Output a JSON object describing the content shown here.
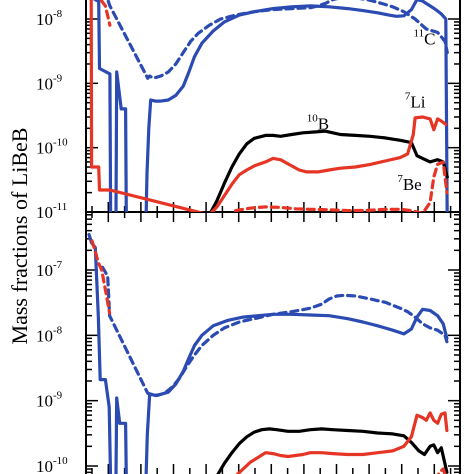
{
  "chart_data": [
    {
      "type": "line",
      "panel": "top",
      "ylabel": "Mass fractions of LiBeB",
      "yscale": "log",
      "ylim": [
        1e-11,
        4e-08
      ],
      "xlim": [
        0,
        100
      ],
      "ytick_labels": [
        {
          "base": "10",
          "exp": "-8",
          "value": 1e-08
        },
        {
          "base": "10",
          "exp": "-9",
          "value": 1e-09
        },
        {
          "base": "10",
          "exp": "-10",
          "value": 1e-10
        },
        {
          "base": "10",
          "exp": "-11",
          "value": 1e-11
        }
      ],
      "annotations": [
        {
          "sup": "11",
          "text": "C",
          "x": 90.5,
          "y": 4e-09
        },
        {
          "sup": "10",
          "text": "B",
          "x": 62,
          "y": 1.9e-10
        },
        {
          "sup": "7",
          "text": "Li",
          "x": 88,
          "y": 4.2e-10
        },
        {
          "sup": "7",
          "text": "Be",
          "x": 86.5,
          "y": 2.2e-11
        }
      ],
      "series": [
        {
          "key": "C11",
          "color": "#2b4bb3",
          "dash": "solid",
          "x": [
            0,
            0.8,
            1.4,
            2.4,
            3.4,
            3.6,
            6.4,
            6.6,
            8,
            8.2,
            9.4,
            10.6,
            10.8,
            16,
            16.3,
            16.8,
            17.3,
            18.5,
            20,
            22,
            24,
            26,
            27.5,
            29,
            31,
            34,
            37,
            41,
            45,
            50,
            55,
            60,
            65,
            70,
            74,
            78,
            81,
            83,
            85,
            87,
            88.5,
            90,
            92,
            93.5,
            95,
            96.2,
            96.6
          ],
          "y": [
            3.5e-08,
            3.8e-08,
            2.4e-08,
            2e-08,
            1.9e-08,
            1.7e-09,
            1.4e-09,
            5e-12,
            5e-12,
            1.5e-09,
            4e-10,
            4e-10,
            5e-12,
            5e-12,
            4e-11,
            2e-10,
            5.5e-10,
            5.3e-10,
            5.3e-10,
            5.5e-10,
            6.5e-10,
            9e-10,
            1.5e-09,
            2.6e-09,
            4.2e-09,
            6.5e-09,
            9e-09,
            1.15e-08,
            1.3e-08,
            1.45e-08,
            1.55e-08,
            1.6e-08,
            1.55e-08,
            1.45e-08,
            1.35e-08,
            1.25e-08,
            1.15e-08,
            1.1e-08,
            1.12e-08,
            1.4e-08,
            2e-08,
            1.9e-08,
            1.6e-08,
            1.4e-08,
            1.2e-08,
            1e-08,
            5e-12
          ]
        },
        {
          "key": "C11-dashed",
          "color": "#2b4bb3",
          "dash": "dashed",
          "x": [
            3.3,
            5.8,
            6.4,
            16.5,
            17,
            18,
            20,
            22,
            24,
            26,
            28,
            30,
            33,
            36,
            40,
            45,
            50,
            55,
            60,
            62,
            64,
            66,
            67.5,
            70,
            73,
            76,
            79,
            82,
            85,
            88,
            91,
            94,
            96,
            96.6
          ],
          "y": [
            2.3e-08,
            2e-08,
            1.6e-08,
            1.2e-09,
            1.3e-09,
            1.2e-09,
            1.3e-09,
            1.5e-09,
            2e-09,
            3e-09,
            4.5e-09,
            6e-09,
            8e-09,
            1e-08,
            1.15e-08,
            1.3e-08,
            1.4e-08,
            1.45e-08,
            1.5e-08,
            1.6e-08,
            1.75e-08,
            2e-08,
            2.1e-08,
            2.15e-08,
            2.1e-08,
            1.95e-08,
            1.75e-08,
            1.55e-08,
            1.3e-08,
            1e-08,
            7e-09,
            6.2e-09,
            4.5e-09,
            3e-09
          ]
        },
        {
          "key": "B10",
          "color": "#000000",
          "dash": "solid",
          "x": [
            33,
            35,
            37,
            39,
            41,
            43,
            45,
            48,
            50,
            52,
            55,
            58,
            61,
            64,
            66,
            68,
            72,
            76,
            80,
            84,
            87,
            88.5,
            90,
            92,
            94,
            95.5,
            96.6
          ],
          "y": [
            9e-12,
            1.5e-11,
            2.8e-11,
            5e-11,
            8e-11,
            1.15e-10,
            1.4e-10,
            1.55e-10,
            1.55e-10,
            1.5e-10,
            1.6e-10,
            1.7e-10,
            1.75e-10,
            1.8e-10,
            1.7e-10,
            1.6e-10,
            1.55e-10,
            1.5e-10,
            1.42e-10,
            1.3e-10,
            1.2e-10,
            7.5e-11,
            6.8e-11,
            6e-11,
            6.5e-11,
            6e-11,
            3.5e-11
          ]
        },
        {
          "key": "Li7",
          "color": "#e63525",
          "dash": "solid",
          "x": [
            0,
            0.8,
            1.4,
            1.5,
            3.4,
            3.6,
            6.4,
            33,
            35,
            37,
            39,
            41,
            43,
            45,
            48,
            50,
            52,
            55,
            57,
            59,
            62,
            65,
            68,
            72,
            76,
            80,
            84,
            86,
            87.5,
            88,
            90,
            92,
            93,
            94,
            95,
            96.2
          ],
          "y": [
            3.8e-08,
            3.5e-08,
            3e-08,
            5e-11,
            5e-11,
            2.2e-11,
            2.2e-11,
            9e-12,
            1.2e-11,
            1.8e-11,
            2.7e-11,
            3.8e-11,
            4.5e-11,
            5.2e-11,
            6e-11,
            6.8e-11,
            6.5e-11,
            5.2e-11,
            4.5e-11,
            4.2e-11,
            4.2e-11,
            4.5e-11,
            4.8e-11,
            5e-11,
            5.5e-11,
            6.2e-11,
            7e-11,
            8e-11,
            1.6e-10,
            2.9e-10,
            3e-10,
            2.8e-10,
            1.9e-10,
            2.8e-10,
            2.6e-10,
            2.3e-10
          ]
        },
        {
          "key": "Li7-dashed",
          "color": "#e63525",
          "dash": "dashed",
          "x": [
            0.8,
            1.5,
            2.5,
            3.4,
            5.2,
            6.4
          ],
          "y": [
            3.8e-08,
            2.6e-08,
            2.4e-08,
            2.2e-08,
            1.6e-08,
            8e-09
          ]
        },
        {
          "key": "Be7",
          "color": "#e63525",
          "dash": "dashed",
          "x": [
            40,
            44,
            48,
            52,
            56,
            60,
            65,
            70,
            75,
            80,
            84,
            87,
            90,
            92,
            93,
            94,
            95.5,
            96.5
          ],
          "y": [
            1.05e-11,
            1.15e-11,
            1.2e-11,
            1.18e-11,
            1.12e-11,
            1.1e-11,
            1.08e-11,
            1.05e-11,
            1.06e-11,
            1.1e-11,
            1.1e-11,
            1.05e-11,
            9.5e-12,
            1.4e-11,
            3.5e-11,
            5.5e-11,
            6e-11,
            2e-11
          ]
        }
      ]
    },
    {
      "type": "line",
      "panel": "bottom",
      "ylabel": "Mass fractions of LiBeB",
      "yscale": "log",
      "ylim": [
        5e-11,
        5e-07
      ],
      "xlim": [
        0,
        100
      ],
      "ytick_labels": [
        {
          "base": "10",
          "exp": "-7",
          "value": 1e-07
        },
        {
          "base": "10",
          "exp": "-8",
          "value": 1e-08
        },
        {
          "base": "10",
          "exp": "-9",
          "value": 1e-09
        },
        {
          "base": "10",
          "exp": "-10",
          "value": 1e-10
        }
      ],
      "series": [
        {
          "key": "C11",
          "color": "#2b4bb3",
          "dash": "solid",
          "x": [
            0.8,
            1.5,
            2.5,
            3.3,
            3.8,
            5.2,
            6.2,
            6.6,
            8,
            8.2,
            9,
            10.6,
            10.8,
            16,
            16.4,
            17,
            17.5,
            18.5,
            20,
            22,
            24,
            26,
            27.5,
            29,
            31,
            34,
            38,
            42,
            46,
            50,
            55,
            60,
            65,
            70,
            74,
            78,
            82,
            85,
            87,
            88.5,
            90,
            92,
            94,
            95.5,
            96.5
          ],
          "y": [
            3.5e-07,
            2.6e-07,
            2.2e-07,
            2e-08,
            2.1e-09,
            2.1e-09,
            8e-10,
            5e-11,
            5e-11,
            1.1e-09,
            4.5e-10,
            4.5e-10,
            5e-11,
            5e-11,
            3e-10,
            1.2e-09,
            1.25e-09,
            1.2e-09,
            1.25e-09,
            1.35e-09,
            1.8e-09,
            2.8e-09,
            4.5e-09,
            7e-09,
            1e-08,
            1.4e-08,
            1.7e-08,
            1.9e-08,
            2e-08,
            2.1e-08,
            2.1e-08,
            2.05e-08,
            2e-08,
            1.8e-08,
            1.6e-08,
            1.4e-08,
            1.2e-08,
            1.05e-08,
            1.25e-08,
            1.9e-08,
            2.5e-08,
            2.4e-08,
            2e-08,
            1.5e-08,
            9e-09
          ]
        },
        {
          "key": "C11-dashed",
          "color": "#2b4bb3",
          "dash": "dashed",
          "x": [
            4.4,
            5.8,
            6.3,
            16.5,
            17.5,
            19,
            21,
            23,
            25,
            27,
            29,
            31,
            34,
            37,
            41,
            45,
            50,
            55,
            60,
            63,
            65,
            67,
            69,
            72,
            76,
            80,
            84,
            86,
            88,
            90,
            92,
            94,
            96,
            96.5
          ],
          "y": [
            1.1e-07,
            8e-08,
            2e-08,
            1.3e-09,
            1.25e-09,
            1.2e-09,
            1.3e-09,
            1.6e-09,
            2.2e-09,
            3.4e-09,
            5e-09,
            7e-09,
            1e-08,
            1.3e-08,
            1.6e-08,
            1.8e-08,
            2.1e-08,
            2.3e-08,
            2.6e-08,
            3e-08,
            3.6e-08,
            4e-08,
            4.1e-08,
            4e-08,
            3.6e-08,
            3.2e-08,
            2.6e-08,
            2.3e-08,
            1.9e-08,
            1.5e-08,
            1.3e-08,
            1.2e-08,
            1e-08,
            8e-09
          ]
        },
        {
          "key": "B10",
          "color": "#000000",
          "dash": "solid",
          "x": [
            33,
            35,
            37,
            39,
            41,
            43,
            45,
            47,
            49,
            51,
            54,
            57,
            60,
            63,
            66,
            70,
            74,
            78,
            82,
            85,
            87,
            89,
            90.5,
            92,
            93,
            94,
            95,
            96.5
          ],
          "y": [
            5e-11,
            7e-11,
            1.1e-10,
            1.6e-10,
            2.2e-10,
            2.8e-10,
            3.3e-10,
            3.6e-10,
            3.7e-10,
            3.6e-10,
            3.4e-10,
            3.4e-10,
            3.6e-10,
            3.7e-10,
            3.6e-10,
            3.5e-10,
            3.4e-10,
            3.2e-10,
            3.1e-10,
            2.9e-10,
            2.3e-10,
            1.7e-10,
            1.5e-10,
            2e-10,
            2.1e-10,
            1.6e-10,
            1.9e-10,
            8e-11
          ]
        },
        {
          "key": "Li7",
          "color": "#e63525",
          "dash": "solid",
          "x": [
            38,
            40,
            42,
            44,
            46,
            48,
            50,
            52,
            54,
            56,
            58,
            60,
            63,
            66,
            70,
            74,
            78,
            82,
            85,
            87,
            88.5,
            90,
            91,
            92,
            93,
            94,
            95,
            96,
            96.5
          ],
          "y": [
            5.5e-11,
            7e-11,
            9e-11,
            1.15e-10,
            1.35e-10,
            1.6e-10,
            1.55e-10,
            1.45e-10,
            1.4e-10,
            1.45e-10,
            1.5e-10,
            1.6e-10,
            1.6e-10,
            1.55e-10,
            1.5e-10,
            1.5e-10,
            1.6e-10,
            1.7e-10,
            2e-10,
            2.8e-10,
            6e-10,
            5.5e-10,
            5e-10,
            6.5e-10,
            5e-10,
            4.5e-10,
            6.2e-10,
            6.5e-10,
            3.5e-10
          ]
        },
        {
          "key": "Li7-dashed",
          "color": "#e63525",
          "dash": "dashed",
          "x": [
            1.6,
            2.4,
            3.3,
            4.2,
            5.2,
            6.3
          ],
          "y": [
            2.8e-07,
            2e-07,
            1.3e-07,
            1e-07,
            5e-08,
            2.2e-08
          ]
        },
        {
          "key": "Be7",
          "color": "#e63525",
          "dash": "dashed",
          "x": [
            93.5,
            94.5,
            95.5,
            96.5
          ],
          "y": [
            6e-11,
            8e-11,
            9e-11,
            6e-11
          ]
        }
      ]
    }
  ]
}
